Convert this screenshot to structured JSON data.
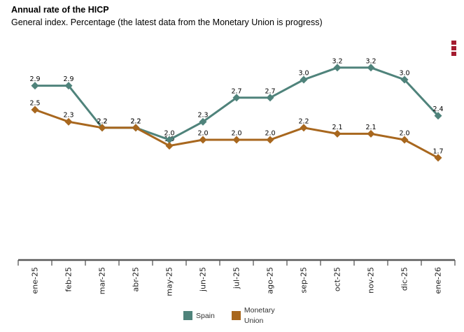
{
  "header": {
    "title": "Annual rate of the HICP",
    "subtitle": "General index. Percentage (the latest data from the Monetary Union is progress)"
  },
  "menu": {
    "icon": "kebab-menu-icon",
    "color": "#A41C30"
  },
  "chart_data": {
    "type": "line",
    "title": "Annual rate of the HICP",
    "subtitle": "General index. Percentage (the latest data from the Monetary Union is progress)",
    "categories": [
      "ene-25",
      "feb-25",
      "mar-25",
      "abr-25",
      "may-25",
      "jun-25",
      "jul-25",
      "ago-25",
      "sep-25",
      "oct-25",
      "nov-25",
      "dic-25",
      "ene-26"
    ],
    "series": [
      {
        "name": "Spain",
        "color": "#4F837B",
        "values": [
          2.9,
          2.9,
          2.2,
          2.2,
          2.0,
          2.3,
          2.7,
          2.7,
          3.0,
          3.2,
          3.2,
          3.0,
          2.4
        ],
        "labels": [
          "2.9",
          "2.9",
          "2.2",
          "2.2",
          "2.0",
          "2.3",
          "2.7",
          "2.7",
          "3.0",
          "3.2",
          "3.2",
          "3.0",
          "2.4"
        ]
      },
      {
        "name": "Monetary Union",
        "color": "#A8671E",
        "values": [
          2.5,
          2.3,
          2.2,
          2.2,
          1.9,
          2.0,
          2.0,
          2.0,
          2.2,
          2.1,
          2.1,
          2.0,
          1.7
        ],
        "labels": [
          "2.5",
          "2.3",
          "2.2",
          "2.2",
          "1.9",
          "2.0",
          "2.0",
          "2.0",
          "2.2",
          "2.1",
          "2.1",
          "2.0",
          "1.7"
        ]
      }
    ],
    "xlabel": "",
    "ylabel": "",
    "ylim": [
      0,
      3.5
    ],
    "grid": false,
    "y_axis_visible": false,
    "marker": "diamond",
    "legend_position": "bottom",
    "axis_color": "#595959",
    "label_color": "#000000",
    "category_label_rotation": -90
  },
  "legend": {
    "items": [
      {
        "label": "Spain",
        "color": "#4F837B"
      },
      {
        "label": "Monetary Union",
        "color": "#A8671E"
      }
    ]
  }
}
